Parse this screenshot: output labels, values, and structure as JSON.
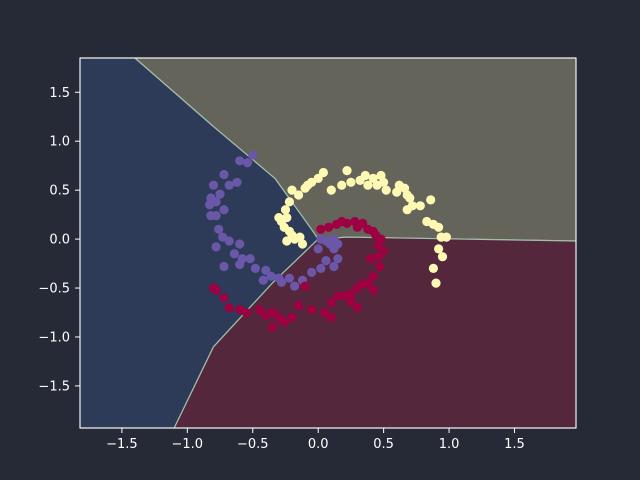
{
  "chart_data": {
    "type": "scatter",
    "title": "",
    "xlabel": "",
    "ylabel": "",
    "xlim": [
      -1.82,
      1.97
    ],
    "ylim": [
      -1.93,
      1.85
    ],
    "x_ticks": [
      -1.5,
      -1.0,
      -0.5,
      0.0,
      0.5,
      1.0,
      1.5
    ],
    "y_ticks": [
      -1.5,
      -1.0,
      -0.5,
      0.0,
      0.5,
      1.0,
      1.5
    ],
    "x_tick_labels": [
      "−1.5",
      "−1.0",
      "−0.5",
      "0.0",
      "0.5",
      "1.0",
      "1.5"
    ],
    "y_tick_labels": [
      "−1.5",
      "−1.0",
      "−0.5",
      "0.0",
      "0.5",
      "1.0",
      "1.5"
    ],
    "grid": false,
    "legend": "none",
    "colors": {
      "background": "#262a36",
      "region_blue": "#2d3b58",
      "region_tan": "#65645a",
      "region_red": "#55273d",
      "boundary": "#9fbfa8",
      "class_purple": "#6a57a8",
      "class_yellow": "#fdf9b2",
      "class_red": "#9e0142"
    },
    "decision_regions": [
      {
        "class": "purple",
        "color_key": "region_blue",
        "polygon": [
          [
            -1.82,
            1.85
          ],
          [
            -1.4,
            1.85
          ],
          [
            -0.8,
            1.15
          ],
          [
            -0.33,
            0.62
          ],
          [
            -0.05,
            0.1
          ],
          [
            0.0,
            0.0
          ],
          [
            -0.35,
            -0.45
          ],
          [
            -0.8,
            -1.1
          ],
          [
            -1.1,
            -1.93
          ],
          [
            -1.82,
            -1.93
          ]
        ]
      },
      {
        "class": "yellow",
        "color_key": "region_tan",
        "polygon": [
          [
            -1.4,
            1.85
          ],
          [
            1.97,
            1.85
          ],
          [
            1.97,
            -0.02
          ],
          [
            0.22,
            0.02
          ],
          [
            0.0,
            0.0
          ],
          [
            -0.05,
            0.1
          ],
          [
            -0.33,
            0.62
          ],
          [
            -0.8,
            1.15
          ]
        ]
      },
      {
        "class": "red",
        "color_key": "region_red",
        "polygon": [
          [
            0.0,
            0.0
          ],
          [
            0.22,
            0.02
          ],
          [
            1.97,
            -0.02
          ],
          [
            1.97,
            -1.93
          ],
          [
            -1.1,
            -1.93
          ],
          [
            -0.8,
            -1.1
          ],
          [
            -0.35,
            -0.45
          ]
        ]
      }
    ],
    "series": [
      {
        "color_key": "class_purple",
        "points": [
          [
            -0.5,
            0.86
          ],
          [
            -0.6,
            0.8
          ],
          [
            -0.54,
            0.78
          ],
          [
            -0.72,
            0.66
          ],
          [
            -0.62,
            0.58
          ],
          [
            -0.68,
            0.55
          ],
          [
            -0.8,
            0.55
          ],
          [
            -0.75,
            0.46
          ],
          [
            -0.82,
            0.42
          ],
          [
            -0.78,
            0.38
          ],
          [
            -0.83,
            0.35
          ],
          [
            -0.72,
            0.3
          ],
          [
            -0.78,
            0.24
          ],
          [
            -0.82,
            0.24
          ],
          [
            -0.76,
            0.1
          ],
          [
            -0.73,
            0.02
          ],
          [
            -0.68,
            -0.02
          ],
          [
            -0.78,
            -0.08
          ],
          [
            -0.6,
            -0.05
          ],
          [
            -0.64,
            -0.15
          ],
          [
            -0.58,
            -0.2
          ],
          [
            -0.52,
            -0.2
          ],
          [
            -0.6,
            -0.26
          ],
          [
            -0.72,
            -0.28
          ],
          [
            -0.48,
            -0.3
          ],
          [
            -0.4,
            -0.32
          ],
          [
            -0.36,
            -0.38
          ],
          [
            -0.3,
            -0.4
          ],
          [
            -0.22,
            -0.4
          ],
          [
            -0.28,
            -0.44
          ],
          [
            -0.42,
            -0.42
          ],
          [
            -0.18,
            -0.48
          ],
          [
            -0.12,
            -0.42
          ],
          [
            -0.05,
            -0.34
          ],
          [
            0.02,
            -0.3
          ],
          [
            0.06,
            -0.22
          ],
          [
            0.12,
            -0.28
          ],
          [
            0.15,
            -0.2
          ],
          [
            0.12,
            -0.1
          ],
          [
            0.09,
            -0.05
          ],
          [
            0.06,
            -0.02
          ],
          [
            0.02,
            0.0
          ],
          [
            0.0,
            -0.1
          ],
          [
            0.12,
            0.0
          ],
          [
            0.15,
            -0.05
          ]
        ]
      },
      {
        "color_key": "class_yellow",
        "points": [
          [
            -0.2,
            0.5
          ],
          [
            -0.15,
            0.45
          ],
          [
            -0.1,
            0.52
          ],
          [
            -0.05,
            0.58
          ],
          [
            0.0,
            0.62
          ],
          [
            0.04,
            0.68
          ],
          [
            -0.08,
            0.55
          ],
          [
            0.1,
            0.5
          ],
          [
            0.18,
            0.55
          ],
          [
            0.25,
            0.58
          ],
          [
            0.22,
            0.7
          ],
          [
            0.32,
            0.6
          ],
          [
            0.36,
            0.65
          ],
          [
            0.42,
            0.62
          ],
          [
            0.38,
            0.55
          ],
          [
            0.45,
            0.55
          ],
          [
            0.5,
            0.58
          ],
          [
            0.48,
            0.65
          ],
          [
            0.52,
            0.5
          ],
          [
            0.6,
            0.48
          ],
          [
            0.62,
            0.55
          ],
          [
            0.66,
            0.52
          ],
          [
            0.68,
            0.45
          ],
          [
            0.7,
            0.42
          ],
          [
            0.72,
            0.34
          ],
          [
            0.68,
            0.3
          ],
          [
            0.78,
            0.34
          ],
          [
            0.86,
            0.4
          ],
          [
            0.83,
            0.18
          ],
          [
            0.88,
            0.15
          ],
          [
            0.92,
            0.12
          ],
          [
            0.94,
            0.02
          ],
          [
            0.98,
            0.02
          ],
          [
            0.92,
            -0.1
          ],
          [
            0.95,
            -0.18
          ],
          [
            0.88,
            -0.3
          ],
          [
            0.9,
            -0.45
          ],
          [
            -0.22,
            0.38
          ],
          [
            -0.25,
            0.3
          ],
          [
            -0.24,
            0.22
          ],
          [
            -0.28,
            0.18
          ],
          [
            -0.3,
            0.22
          ],
          [
            -0.26,
            0.12
          ],
          [
            -0.22,
            0.08
          ],
          [
            -0.2,
            0.04
          ],
          [
            -0.18,
            0.0
          ],
          [
            -0.14,
            0.02
          ],
          [
            -0.24,
            -0.02
          ],
          [
            -0.12,
            -0.05
          ]
        ]
      },
      {
        "color_key": "class_red",
        "points": [
          [
            0.02,
            0.1
          ],
          [
            0.08,
            0.12
          ],
          [
            0.14,
            0.15
          ],
          [
            0.18,
            0.18
          ],
          [
            0.22,
            0.16
          ],
          [
            0.28,
            0.18
          ],
          [
            0.3,
            0.12
          ],
          [
            0.34,
            0.16
          ],
          [
            0.38,
            0.1
          ],
          [
            0.42,
            0.08
          ],
          [
            0.44,
            0.04
          ],
          [
            0.48,
            0.0
          ],
          [
            0.46,
            -0.06
          ],
          [
            0.5,
            -0.12
          ],
          [
            0.46,
            -0.18
          ],
          [
            0.4,
            -0.2
          ],
          [
            0.47,
            -0.28
          ],
          [
            0.42,
            -0.38
          ],
          [
            0.38,
            -0.45
          ],
          [
            0.42,
            -0.52
          ],
          [
            0.34,
            -0.46
          ],
          [
            0.3,
            -0.5
          ],
          [
            0.25,
            -0.56
          ],
          [
            0.2,
            -0.58
          ],
          [
            0.15,
            -0.58
          ],
          [
            0.1,
            -0.65
          ],
          [
            0.1,
            -0.8
          ],
          [
            0.05,
            -0.75
          ],
          [
            -0.05,
            -0.72
          ],
          [
            -0.1,
            -0.48
          ],
          [
            -0.15,
            -0.68
          ],
          [
            -0.2,
            -0.8
          ],
          [
            -0.26,
            -0.85
          ],
          [
            -0.3,
            -0.8
          ],
          [
            -0.35,
            -0.75
          ],
          [
            -0.4,
            -0.78
          ],
          [
            -0.45,
            -0.72
          ],
          [
            -0.55,
            -0.75
          ],
          [
            -0.6,
            -0.72
          ],
          [
            -0.68,
            -0.7
          ],
          [
            -0.72,
            -0.6
          ],
          [
            -0.8,
            -0.5
          ],
          [
            -0.78,
            -0.52
          ],
          [
            -0.35,
            -0.9
          ],
          [
            0.25,
            -0.64
          ],
          [
            0.3,
            -0.7
          ]
        ]
      }
    ]
  }
}
